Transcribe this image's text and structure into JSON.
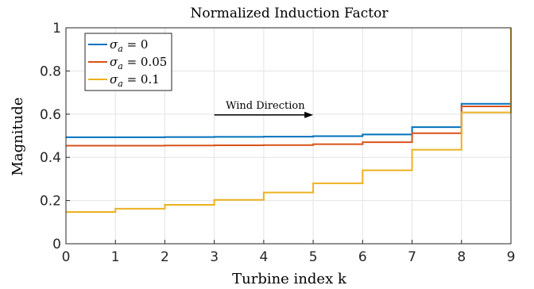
{
  "chart_data": {
    "type": "line",
    "title": "Normalized Induction Factor",
    "xlabel": "Turbine index k",
    "ylabel": "Magnitude",
    "xlim": [
      0,
      9
    ],
    "ylim": [
      0,
      1
    ],
    "xticks": [
      0,
      1,
      2,
      3,
      4,
      5,
      6,
      7,
      8,
      9
    ],
    "yticks": [
      0,
      0.2,
      0.4,
      0.6,
      0.8,
      1
    ],
    "grid": true,
    "step": "post",
    "x": [
      0,
      1,
      2,
      3,
      4,
      5,
      6,
      7,
      8,
      9
    ],
    "series": [
      {
        "name": "σa = 0",
        "label_main": "σ",
        "label_sub": "a",
        "label_rest": " = 0",
        "color": "#0072BD",
        "values": [
          0.493,
          0.493,
          0.494,
          0.495,
          0.496,
          0.498,
          0.506,
          0.54,
          0.648,
          1.0
        ]
      },
      {
        "name": "σa = 0.05",
        "label_main": "σ",
        "label_sub": "a",
        "label_rest": " = 0.05",
        "color": "#D95319",
        "values": [
          0.454,
          0.454,
          0.455,
          0.456,
          0.457,
          0.461,
          0.47,
          0.512,
          0.636,
          1.0
        ]
      },
      {
        "name": "σa = 0.1",
        "label_main": "σ",
        "label_sub": "a",
        "label_rest": " = 0.1",
        "color": "#EDB120",
        "values": [
          0.147,
          0.162,
          0.18,
          0.203,
          0.237,
          0.28,
          0.34,
          0.435,
          0.608,
          1.0
        ]
      }
    ],
    "legend_position": "top-left",
    "annotation": {
      "text": "Wind Direction",
      "arrow_from_x": 3,
      "arrow_to_x": 5,
      "arrow_y": 0.6
    }
  }
}
